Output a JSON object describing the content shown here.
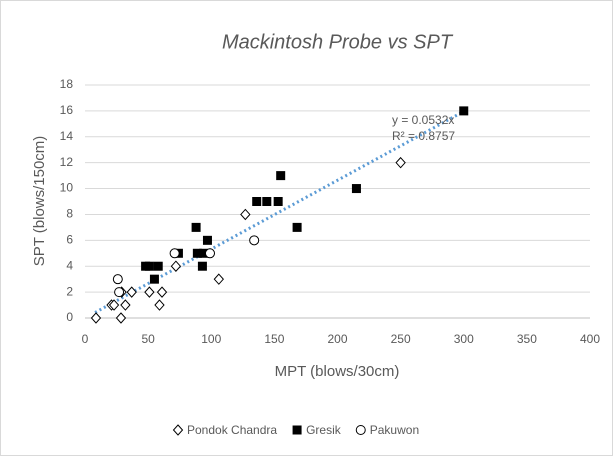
{
  "chart_data": {
    "type": "scatter",
    "title": "Mackintosh Probe vs SPT",
    "x_label": "MPT (blows/30cm)",
    "y_label": "SPT (blows/150cm)",
    "xlim": [
      0,
      400
    ],
    "xticks": [
      0,
      50,
      100,
      150,
      200,
      250,
      300,
      350,
      400
    ],
    "ylim": [
      0,
      18
    ],
    "yticks": [
      0,
      2,
      4,
      6,
      8,
      10,
      12,
      14,
      16,
      18
    ],
    "grid": true,
    "legend": "bottom",
    "series": [
      {
        "name": "Pondok Chandra",
        "color": "#000000",
        "marker": "diamond-open",
        "x": [
          8.7,
          21,
          23,
          29,
          28.5,
          32,
          37,
          51,
          59,
          61,
          72,
          106,
          127,
          250
        ],
        "values": [
          0,
          1,
          1,
          2,
          0,
          1,
          2,
          2,
          1,
          2,
          4,
          3,
          8,
          12
        ]
      },
      {
        "name": "Gresik",
        "color": "#000000",
        "marker": "square-filled",
        "x": [
          48,
          51,
          55,
          58,
          74,
          88,
          89,
          93,
          94,
          97,
          136,
          144,
          153,
          155,
          168,
          215,
          300
        ],
        "values": [
          4,
          4,
          3,
          4,
          5,
          7,
          5,
          4,
          5,
          6,
          9,
          9,
          9,
          11,
          7,
          10,
          16
        ]
      },
      {
        "name": "Pakuwon",
        "color": "#000000",
        "marker": "circle-open",
        "x": [
          26,
          27,
          71,
          99,
          134
        ],
        "values": [
          3,
          2,
          5,
          5,
          6
        ]
      }
    ],
    "trendline": {
      "equation": "y = 0.0532x",
      "r2": "R² = 0.8757",
      "slope": 0.0532,
      "x_range": [
        8,
        300
      ],
      "color": "#5b9bd5"
    }
  }
}
